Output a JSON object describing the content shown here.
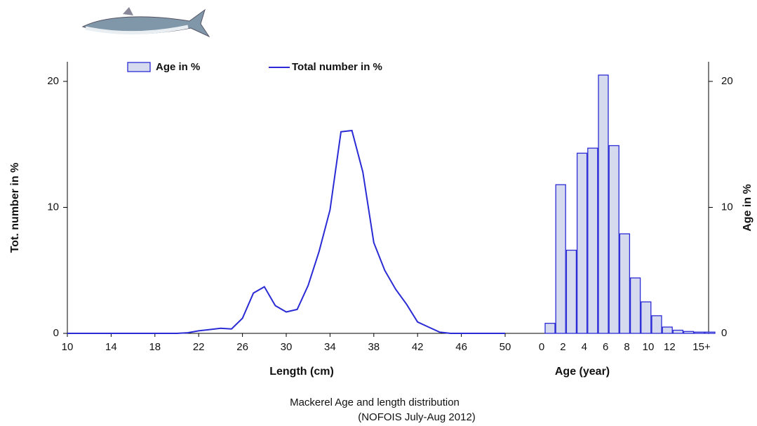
{
  "chart_data": [
    {
      "type": "line",
      "title": "Mackerel Age and length distribution",
      "subtitle": "(NOFOIS July-Aug 2012)",
      "x_label": "Length (cm)",
      "y_label": "Tot. number  in %",
      "x": [
        10,
        11,
        12,
        13,
        14,
        15,
        16,
        17,
        18,
        19,
        20,
        21,
        22,
        23,
        24,
        25,
        26,
        27,
        28,
        29,
        30,
        31,
        32,
        33,
        34,
        35,
        36,
        37,
        38,
        39,
        40,
        41,
        42,
        43,
        44,
        45,
        46,
        47,
        48,
        49,
        50
      ],
      "series": [
        {
          "name": "Total number in %",
          "color": "#2b2bd6",
          "values": [
            0,
            0,
            0,
            0,
            0,
            0,
            0,
            0,
            0,
            0,
            0,
            0.05,
            0.2,
            0.3,
            0.4,
            0.35,
            1.2,
            3.2,
            3.7,
            2.2,
            1.7,
            1.9,
            3.8,
            6.5,
            9.8,
            16,
            16.1,
            12.8,
            7.2,
            5,
            3.5,
            2.3,
            0.9,
            0.5,
            0.1,
            0,
            0,
            0,
            0,
            0,
            0
          ]
        }
      ],
      "xlim": [
        10,
        50
      ],
      "xticks": [
        10,
        14,
        18,
        22,
        26,
        30,
        34,
        38,
        42,
        46,
        50
      ],
      "ylim": [
        0,
        21
      ],
      "yticks": [
        0,
        10,
        20
      ]
    },
    {
      "type": "bar",
      "x_label": "Age (year)",
      "y_label": "Age in %",
      "categories": [
        "0",
        null,
        "2",
        null,
        "4",
        null,
        "6",
        null,
        "8",
        null,
        "10",
        null,
        "12",
        null,
        null,
        "15+"
      ],
      "series": [
        {
          "name": "Age in %",
          "color": "#d6daef",
          "edge_color": "#2b2bd6",
          "values": [
            0.8,
            11.8,
            6.6,
            14.3,
            14.7,
            20.5,
            14.9,
            7.9,
            4.4,
            2.5,
            1.4,
            0.5,
            0.25,
            0.15,
            0.1,
            0.1
          ]
        }
      ],
      "ylim": [
        0,
        21
      ],
      "yticks": [
        0,
        10,
        20
      ]
    }
  ]
}
